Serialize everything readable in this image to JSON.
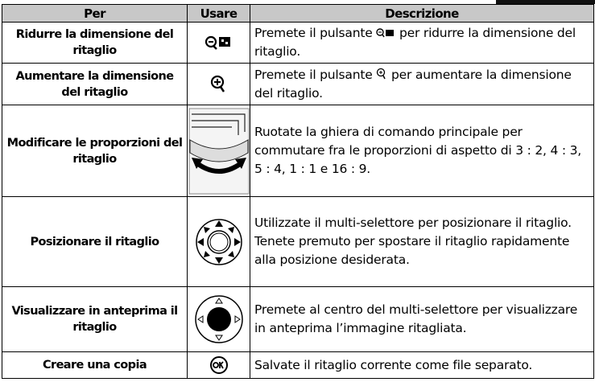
{
  "table": {
    "header": [
      "Per",
      "Usare",
      "Descrizione"
    ],
    "rows": [
      {
        "action": "Ridurre la dimensione del ritaglio",
        "desc": [
          "Premete il pulsante",
          "per ridurre la dimensione del ritaglio."
        ]
      },
      {
        "action": "Aumentare la dimensione del ritaglio",
        "desc": [
          "Premete il pulsante",
          "per aumentare la dimensione del ritaglio."
        ]
      },
      {
        "action": "Modificare le proporzioni del ritaglio",
        "desc": [
          "Ruotate la ghiera di comando principale per commutare fra le proporzioni di aspetto di 3 : 2, 4 : 3, 5 : 4, 1 : 1 e 16 : 9."
        ]
      },
      {
        "action": "Posizionare il ritaglio",
        "desc": [
          "Utilizzate il multi-selettore per posizionare il ritaglio. Tenete premuto per spostare il ritaglio rapidamente alla posizione desiderata."
        ]
      },
      {
        "action": "Visualizzare in anteprima il ritaglio",
        "desc": [
          "Premete al centro del multi-selettore per visualizzare in anteprima l’immagine ritagliata."
        ]
      },
      {
        "action": "Creare una copia",
        "desc": [
          "Salvate il ritaglio corrente come file separato."
        ]
      }
    ]
  }
}
